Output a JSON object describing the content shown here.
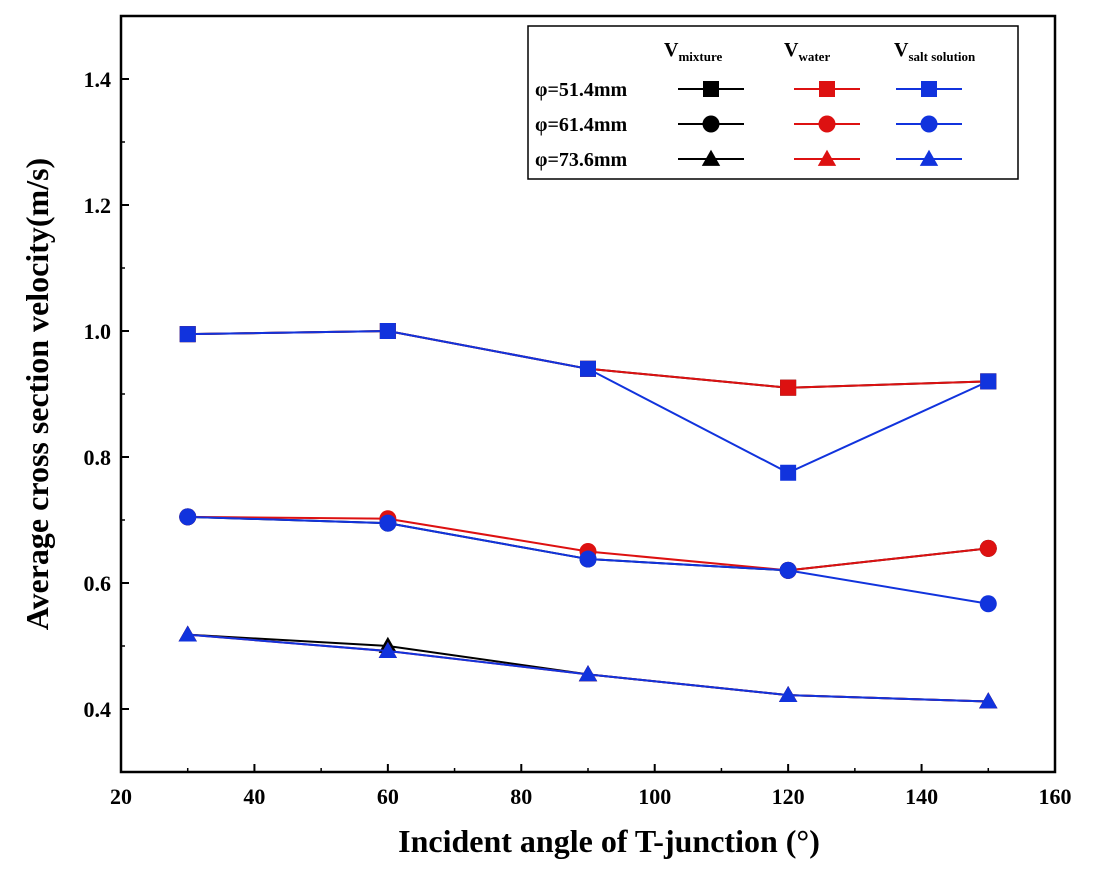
{
  "chart_data": {
    "type": "line",
    "xlabel": "Incident angle of T-junction (°)",
    "ylabel": "Average cross section velocity(m/s)",
    "xlim": [
      20,
      160
    ],
    "ylim": [
      0.3,
      1.5
    ],
    "x_ticks": [
      20,
      40,
      60,
      80,
      100,
      120,
      140,
      160
    ],
    "y_ticks": [
      0.4,
      0.6,
      0.8,
      1.0,
      1.2,
      1.4
    ],
    "grid": false,
    "legend_position": "top-right",
    "legend": {
      "column_headers": [
        {
          "main": "V",
          "sub": "mixture"
        },
        {
          "main": "V",
          "sub": "water"
        },
        {
          "main": "V",
          "sub": "salt solution"
        }
      ],
      "row_labels": [
        "φ=51.4mm",
        "φ=61.4mm",
        "φ=73.6mm"
      ]
    },
    "x": [
      30,
      60,
      90,
      120,
      150
    ],
    "series": [
      {
        "name": "φ=51.4mm V mixture",
        "color": "#000000",
        "marker": "square",
        "values": [
          0.995,
          1.0,
          0.94,
          0.91,
          0.92
        ]
      },
      {
        "name": "φ=51.4mm V water",
        "color": "#dd1111",
        "marker": "square",
        "values": [
          0.995,
          1.0,
          0.94,
          0.91,
          0.92
        ]
      },
      {
        "name": "φ=51.4mm V salt solution",
        "color": "#1133dd",
        "marker": "square",
        "values": [
          0.995,
          1.0,
          0.94,
          0.775,
          0.92
        ]
      },
      {
        "name": "φ=61.4mm V mixture",
        "color": "#000000",
        "marker": "circle",
        "values": [
          0.705,
          0.695,
          0.638,
          0.62,
          0.655
        ]
      },
      {
        "name": "φ=61.4mm V water",
        "color": "#dd1111",
        "marker": "circle",
        "values": [
          0.705,
          0.702,
          0.65,
          0.62,
          0.655
        ]
      },
      {
        "name": "φ=61.4mm V salt solution",
        "color": "#1133dd",
        "marker": "circle",
        "values": [
          0.705,
          0.695,
          0.638,
          0.62,
          0.567
        ]
      },
      {
        "name": "φ=73.6mm V mixture",
        "color": "#000000",
        "marker": "triangle",
        "values": [
          0.518,
          0.5,
          0.455,
          0.422,
          0.412
        ]
      },
      {
        "name": "φ=73.6mm V water",
        "color": "#dd1111",
        "marker": "triangle",
        "values": [
          0.518,
          0.492,
          0.455,
          0.422,
          0.412
        ]
      },
      {
        "name": "φ=73.6mm V salt solution",
        "color": "#1133dd",
        "marker": "triangle",
        "values": [
          0.518,
          0.492,
          0.455,
          0.422,
          0.412
        ]
      }
    ]
  }
}
